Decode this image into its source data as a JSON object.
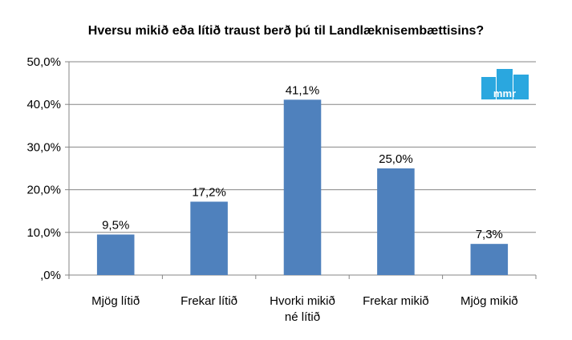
{
  "chart_data": {
    "type": "bar",
    "title": "Hversu mikið eða lítið traust berð þú til Landlæknisembættisins?",
    "categories": [
      [
        "Mjög lítið"
      ],
      [
        "Frekar lítið"
      ],
      [
        "Hvorki mikið",
        "né lítið"
      ],
      [
        "Frekar mikið"
      ],
      [
        "Mjög mikið"
      ]
    ],
    "values": [
      9.5,
      17.2,
      41.1,
      25.0,
      7.3
    ],
    "data_labels": [
      "9,5%",
      "17,2%",
      "41,1%",
      "25,0%",
      "7,3%"
    ],
    "y_ticks": [
      0,
      10,
      20,
      30,
      40,
      50
    ],
    "y_tick_labels": [
      ",0%",
      "10,0%",
      "20,0%",
      "30,0%",
      "40,0%",
      "50,0%"
    ],
    "ylim": [
      0,
      50
    ],
    "grid": true,
    "bar_color": "#4f81bd",
    "xlabel": "",
    "ylabel": ""
  },
  "logo": {
    "text": "mmr",
    "color": "#2aa7df",
    "icon": "mmr-logo"
  }
}
